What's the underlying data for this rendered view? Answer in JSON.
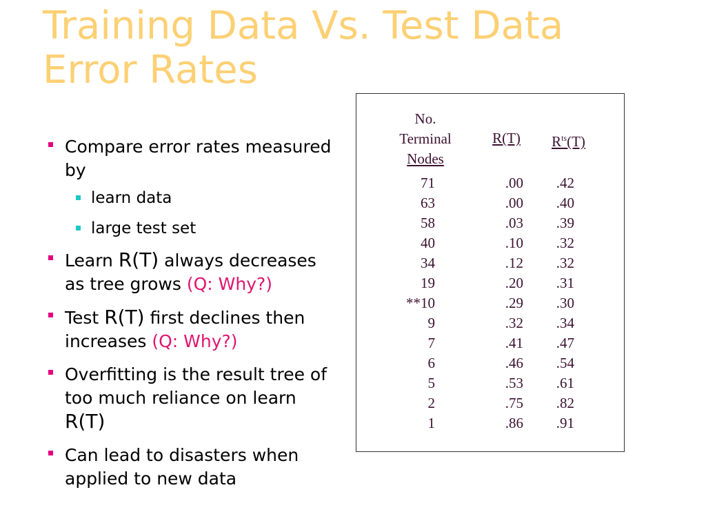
{
  "title": {
    "line1": "Training Data Vs. Test Data",
    "line2": "Error Rates"
  },
  "bullets": {
    "b1": "Compare error rates measured by",
    "b1_sub1": "learn data",
    "b1_sub2": "large test set",
    "b2_pre": "Learn ",
    "b2_rt": "R(T)",
    "b2_mid": " always decreases as tree grows ",
    "b2_q": "(Q: Why?)",
    "b3_pre": "Test ",
    "b3_rt": "R(T)",
    "b3_mid": " first declines then increases ",
    "b3_q": "(Q: Why?)",
    "b4_text": "Overfitting is the result tree of too much reliance on learn ",
    "b4_rt": "R(T)",
    "b5": "Can lead to disasters when applied to new data"
  },
  "table": {
    "header_nodes_1": "No.",
    "header_nodes_2": "Terminal",
    "header_nodes_3": "Nodes",
    "header_rt": "R(T)",
    "header_rts_r": "R",
    "header_rts_sup": "ts",
    "header_rts_t": "(T)",
    "rows": [
      {
        "nodes": "71",
        "rt": ".00",
        "rts": ".42"
      },
      {
        "nodes": "63",
        "rt": ".00",
        "rts": ".40"
      },
      {
        "nodes": "58",
        "rt": ".03",
        "rts": ".39"
      },
      {
        "nodes": "40",
        "rt": ".10",
        "rts": ".32"
      },
      {
        "nodes": "34",
        "rt": ".12",
        "rts": ".32"
      },
      {
        "nodes": "19",
        "rt": ".20",
        "rts": ".31"
      },
      {
        "nodes": "**10",
        "rt": ".29",
        "rts": ".30"
      },
      {
        "nodes": "9",
        "rt": ".32",
        "rts": ".34"
      },
      {
        "nodes": "7",
        "rt": ".41",
        "rts": ".47"
      },
      {
        "nodes": "6",
        "rt": ".46",
        "rts": ".54"
      },
      {
        "nodes": "5",
        "rt": ".53",
        "rts": ".61"
      },
      {
        "nodes": "2",
        "rt": ".75",
        "rts": ".82"
      },
      {
        "nodes": "1",
        "rt": ".86",
        "rts": ".91"
      }
    ]
  },
  "colors": {
    "title": "#fcd074",
    "bullet_primary": "#e6007e",
    "bullet_secondary": "#1ec6c6",
    "highlight": "#e0146e",
    "table_text": "#3a1030"
  }
}
